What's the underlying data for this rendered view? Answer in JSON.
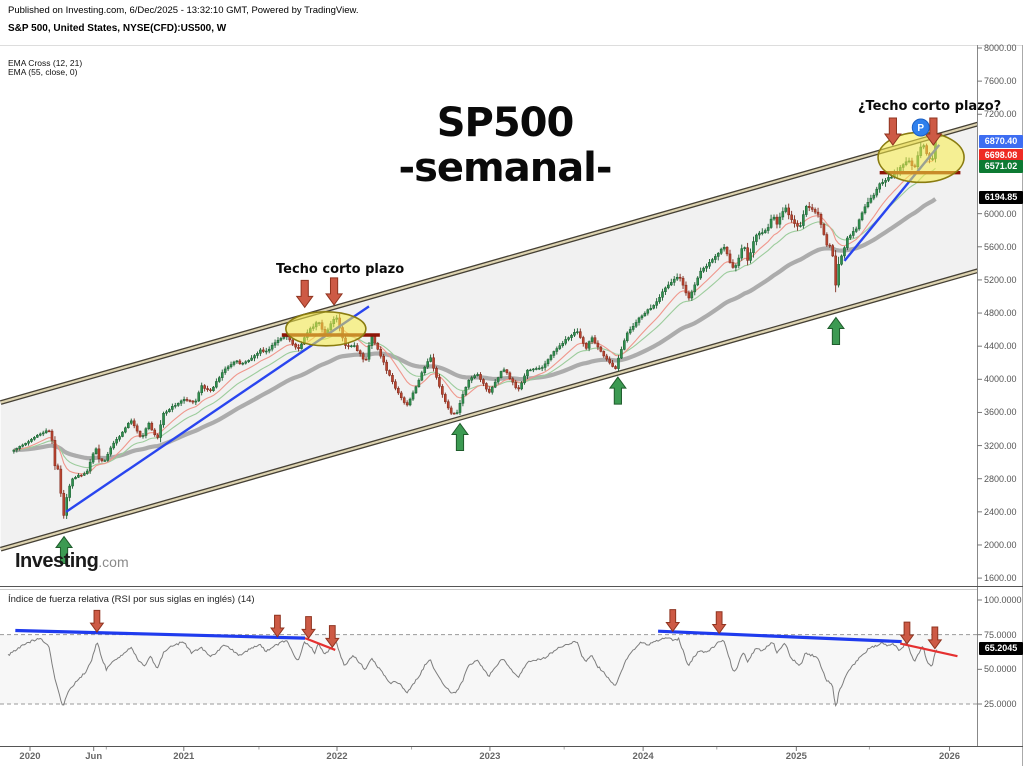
{
  "header": {
    "published_line": "Published on Investing.com, 6/Dec/2025 - 13:32:10 GMT, Powered by TradingView.",
    "symbol_line": "S&P 500, United States, NYSE(CFD):US500, W",
    "indicator_lines": [
      "EMA Cross (12, 21)",
      "EMA (55, close, 0)"
    ]
  },
  "watermark": {
    "bold": "Investing",
    "light": ".com"
  },
  "main_panel": {
    "title_line1": "SP500",
    "title_line2": "-semanal-",
    "annotation_left": "Techo corto plazo",
    "annotation_right": "¿Techo corto plazo?",
    "p_badge_label": "P",
    "price_labels": [
      {
        "value": "6870.40",
        "price": 6870.4,
        "color": "#3d6df2"
      },
      {
        "value": "6698.08",
        "price": 6698.08,
        "color": "#ee2b24"
      },
      {
        "value": "6571.02",
        "price": 6571.02,
        "color": "#0d7a33"
      },
      {
        "value": "6194.85",
        "price": 6194.85,
        "color": "#000000"
      }
    ],
    "y_ticks": [
      8000,
      7600,
      7200,
      6000,
      5600,
      5200,
      4800,
      4400,
      4000,
      3600,
      3200,
      2800,
      2400,
      2000,
      1600
    ]
  },
  "rsi_panel": {
    "label": "Índice de fuerza relativa (RSI por sus siglas en inglés) (14)",
    "value_label": "65.2045",
    "value": 65.2045,
    "y_ticks": [
      100,
      75,
      50,
      25
    ],
    "levels": [
      75,
      25
    ]
  },
  "x_axis": {
    "labels": [
      {
        "text": "2020",
        "w": 0
      },
      {
        "text": "Jun",
        "w": 21.7
      },
      {
        "text": "2021",
        "w": 52.4
      },
      {
        "text": "2022",
        "w": 104.6
      },
      {
        "text": "2023",
        "w": 156.7
      },
      {
        "text": "2024",
        "w": 208.9
      },
      {
        "text": "2025",
        "w": 261.1
      },
      {
        "text": "2026",
        "w": 313.3
      }
    ]
  },
  "chart_data": {
    "type": "candlestick",
    "title": "SP500 -semanal-",
    "symbol": "S&P 500, NYSE(CFD):US500, W",
    "x_unit": "weeks_since_2020_01_01",
    "price_axis_range": [
      1600,
      8000
    ],
    "rsi_axis_range": [
      0,
      100
    ],
    "ema_periods": {
      "fast": 12,
      "slow": 21,
      "long": 55
    },
    "last_values": {
      "close": 6870.4,
      "ema12": 6698.08,
      "ema21": 6571.02,
      "ema55": 6194.85,
      "rsi14": 65.2045
    },
    "weekly_close_anchors": [
      [
        -5.5,
        3145
      ],
      [
        -0.7,
        3240
      ],
      [
        2.3,
        3330
      ],
      [
        6.3,
        3380
      ],
      [
        7.3,
        3337
      ],
      [
        8.3,
        2954
      ],
      [
        9.3,
        2972
      ],
      [
        10.3,
        2711
      ],
      [
        11.3,
        2305
      ],
      [
        12.3,
        2541
      ],
      [
        14.1,
        2790
      ],
      [
        16.3,
        2837
      ],
      [
        19.3,
        2864
      ],
      [
        22.3,
        3194
      ],
      [
        23.3,
        3041
      ],
      [
        25.3,
        3009
      ],
      [
        28.3,
        3225
      ],
      [
        31.3,
        3351
      ],
      [
        34.3,
        3508
      ],
      [
        37.3,
        3319
      ],
      [
        38.3,
        3298
      ],
      [
        40.3,
        3477
      ],
      [
        43.3,
        3270
      ],
      [
        45.3,
        3585
      ],
      [
        47.3,
        3638
      ],
      [
        50.3,
        3709
      ],
      [
        52.3,
        3756
      ],
      [
        56.3,
        3714
      ],
      [
        58.3,
        3935
      ],
      [
        61.3,
        3842
      ],
      [
        66.3,
        4129
      ],
      [
        70.3,
        4233
      ],
      [
        71.3,
        4174
      ],
      [
        75.3,
        4247
      ],
      [
        78.3,
        4352
      ],
      [
        80.3,
        4327
      ],
      [
        83.3,
        4437
      ],
      [
        87.3,
        4535
      ],
      [
        91.3,
        4357
      ],
      [
        95.3,
        4605
      ],
      [
        98.3,
        4698
      ],
      [
        100.3,
        4538
      ],
      [
        104.3,
        4766
      ],
      [
        107.3,
        4398
      ],
      [
        110.3,
        4419
      ],
      [
        114.3,
        4204
      ],
      [
        116.3,
        4543
      ],
      [
        121.3,
        4132
      ],
      [
        124.3,
        3901
      ],
      [
        128.3,
        3675
      ],
      [
        134.3,
        4130
      ],
      [
        136.3,
        4280
      ],
      [
        139.3,
        3924
      ],
      [
        143.3,
        3586
      ],
      [
        145.3,
        3583
      ],
      [
        149.3,
        3993
      ],
      [
        152.3,
        4072
      ],
      [
        156.3,
        3840
      ],
      [
        161.3,
        4136
      ],
      [
        166.3,
        3862
      ],
      [
        169.3,
        4109
      ],
      [
        174.3,
        4136
      ],
      [
        180.3,
        4410
      ],
      [
        186.3,
        4582
      ],
      [
        189.3,
        4370
      ],
      [
        191.3,
        4516
      ],
      [
        195.3,
        4288
      ],
      [
        199.3,
        4117
      ],
      [
        203.3,
        4559
      ],
      [
        208.3,
        4770
      ],
      [
        212.3,
        4891
      ],
      [
        217.3,
        5137
      ],
      [
        221.1,
        5254
      ],
      [
        224.3,
        4967
      ],
      [
        228.3,
        5303
      ],
      [
        232.3,
        5432
      ],
      [
        236.3,
        5615
      ],
      [
        239.3,
        5347
      ],
      [
        240.3,
        5344
      ],
      [
        243.3,
        5648
      ],
      [
        244.3,
        5408
      ],
      [
        247.3,
        5738
      ],
      [
        251.3,
        5808
      ],
      [
        253.3,
        5996
      ],
      [
        254.3,
        5871
      ],
      [
        257.3,
        6090
      ],
      [
        259.3,
        5931
      ],
      [
        262.3,
        5827
      ],
      [
        264.3,
        6101
      ],
      [
        268.3,
        6013
      ],
      [
        271.3,
        5639
      ],
      [
        273.3,
        5581
      ],
      [
        274.3,
        5074
      ],
      [
        275.3,
        5363
      ],
      [
        278.3,
        5687
      ],
      [
        281.3,
        5803
      ],
      [
        283.3,
        6000
      ],
      [
        286.3,
        6173
      ],
      [
        290.3,
        6389
      ],
      [
        293.3,
        6450
      ],
      [
        294.3,
        6467
      ],
      [
        297.3,
        6584
      ],
      [
        299.3,
        6644
      ],
      [
        301.3,
        6552
      ],
      [
        303.3,
        6792
      ],
      [
        304.3,
        6840
      ],
      [
        305.3,
        6729
      ],
      [
        307.3,
        6603
      ],
      [
        308.3,
        6849
      ],
      [
        309.3,
        6870.4
      ]
    ],
    "channel": {
      "lower": [
        [
          11.9,
          2170
        ],
        [
          322,
          5302
        ]
      ],
      "upper": [
        [
          11.9,
          3940
        ],
        [
          322,
          7073
        ]
      ]
    },
    "trendlines_blue": [
      {
        "w1": 12.3,
        "p1": 2400,
        "w2": 115.5,
        "p2": 4880
      },
      {
        "w1": 277.5,
        "p1": 5430,
        "w2": 309.8,
        "p2": 6830
      }
    ],
    "resistance_lines_red": [
      {
        "w1": 85.8,
        "w2": 119.2,
        "price": 4535
      },
      {
        "w1": 289.5,
        "w2": 317.0,
        "price": 6495
      }
    ],
    "ellipses": [
      {
        "w": 100.8,
        "price": 4610,
        "rx": 40,
        "ry": 17
      },
      {
        "w": 303.6,
        "price": 6680,
        "rx": 43,
        "ry": 25
      }
    ],
    "arrows_down": [
      [
        93.6,
        4820
      ],
      [
        103.6,
        4850
      ],
      [
        294.0,
        6780
      ],
      [
        307.8,
        6780
      ]
    ],
    "arrows_up": [
      [
        11.6,
        2150
      ],
      [
        146.5,
        3515
      ],
      [
        200.3,
        4075
      ],
      [
        274.6,
        4795
      ]
    ],
    "p_marker": {
      "w": 303.5,
      "price": 7040
    },
    "rsi": {
      "period": 14,
      "anchors": [
        [
          -7.5,
          60
        ],
        [
          -2,
          68
        ],
        [
          3.5,
          73
        ],
        [
          6.5,
          66
        ],
        [
          8.3,
          45
        ],
        [
          10.5,
          28
        ],
        [
          11.3,
          23
        ],
        [
          13,
          34
        ],
        [
          16,
          42
        ],
        [
          19,
          48
        ],
        [
          21,
          56
        ],
        [
          22.8,
          71
        ],
        [
          24.5,
          58
        ],
        [
          26,
          50
        ],
        [
          28,
          55
        ],
        [
          31,
          60
        ],
        [
          34.3,
          66
        ],
        [
          37,
          56
        ],
        [
          39,
          52
        ],
        [
          41,
          60
        ],
        [
          43.3,
          50
        ],
        [
          45.5,
          62
        ],
        [
          47.5,
          66
        ],
        [
          50,
          68
        ],
        [
          52.3,
          70
        ],
        [
          55,
          62
        ],
        [
          58.3,
          66
        ],
        [
          61.3,
          59
        ],
        [
          64,
          63
        ],
        [
          66.3,
          68
        ],
        [
          69,
          64
        ],
        [
          71.3,
          60
        ],
        [
          73.5,
          63
        ],
        [
          75.3,
          65
        ],
        [
          78.3,
          68
        ],
        [
          80.3,
          63
        ],
        [
          83.3,
          67
        ],
        [
          87.3,
          71
        ],
        [
          89.5,
          62
        ],
        [
          91.3,
          56
        ],
        [
          93.5,
          70
        ],
        [
          95.3,
          67
        ],
        [
          97,
          62
        ],
        [
          98.3,
          69
        ],
        [
          100.3,
          60
        ],
        [
          102.3,
          65
        ],
        [
          104.3,
          70
        ],
        [
          106,
          59
        ],
        [
          107.3,
          52
        ],
        [
          109,
          57
        ],
        [
          110.3,
          60
        ],
        [
          112.5,
          54
        ],
        [
          114.3,
          50
        ],
        [
          116.3,
          58
        ],
        [
          118.5,
          52
        ],
        [
          121.3,
          44
        ],
        [
          123,
          40
        ],
        [
          124.3,
          42
        ],
        [
          126.5,
          38
        ],
        [
          128.3,
          33
        ],
        [
          130.5,
          39
        ],
        [
          132.5,
          45
        ],
        [
          134.3,
          52
        ],
        [
          136.3,
          58
        ],
        [
          138,
          49
        ],
        [
          139.3,
          44
        ],
        [
          141.5,
          38
        ],
        [
          143.3,
          33
        ],
        [
          145.3,
          34
        ],
        [
          147.5,
          42
        ],
        [
          149.3,
          52
        ],
        [
          151,
          55
        ],
        [
          152.3,
          57
        ],
        [
          154.5,
          50
        ],
        [
          156.3,
          45
        ],
        [
          158.5,
          52
        ],
        [
          161.3,
          58
        ],
        [
          163.5,
          51
        ],
        [
          166.3,
          44
        ],
        [
          168,
          50
        ],
        [
          169.3,
          55
        ],
        [
          171.5,
          57
        ],
        [
          174.3,
          57
        ],
        [
          176.5,
          60
        ],
        [
          178.5,
          63
        ],
        [
          180.3,
          66
        ],
        [
          183,
          68
        ],
        [
          186.3,
          70
        ],
        [
          188,
          60
        ],
        [
          189.3,
          55
        ],
        [
          191.3,
          60
        ],
        [
          193.5,
          52
        ],
        [
          195.3,
          48
        ],
        [
          197.5,
          43
        ],
        [
          199.3,
          38
        ],
        [
          201.5,
          48
        ],
        [
          203.3,
          58
        ],
        [
          205.5,
          64
        ],
        [
          208.3,
          70
        ],
        [
          210.5,
          67
        ],
        [
          212.3,
          70
        ],
        [
          214.5,
          71
        ],
        [
          217.3,
          73
        ],
        [
          219.1,
          71
        ],
        [
          221.1,
          72
        ],
        [
          223,
          60
        ],
        [
          224.3,
          52
        ],
        [
          226.5,
          60
        ],
        [
          228.3,
          64
        ],
        [
          230.5,
          62
        ],
        [
          232.3,
          65
        ],
        [
          234.8,
          70
        ],
        [
          236.3,
          71
        ],
        [
          238,
          60
        ],
        [
          239.3,
          50
        ],
        [
          240.3,
          48
        ],
        [
          242,
          58
        ],
        [
          243.3,
          62
        ],
        [
          244.3,
          55
        ],
        [
          245.8,
          60
        ],
        [
          247.3,
          65
        ],
        [
          249.5,
          63
        ],
        [
          251.3,
          67
        ],
        [
          253.3,
          70
        ],
        [
          254.3,
          62
        ],
        [
          256,
          66
        ],
        [
          257.3,
          69
        ],
        [
          259.3,
          58
        ],
        [
          261,
          55
        ],
        [
          262.3,
          52
        ],
        [
          264.3,
          62
        ],
        [
          266.5,
          60
        ],
        [
          268.3,
          58
        ],
        [
          270,
          50
        ],
        [
          271.3,
          42
        ],
        [
          273.3,
          40
        ],
        [
          274.3,
          25
        ],
        [
          274.8,
          22
        ],
        [
          275.3,
          32
        ],
        [
          277,
          40
        ],
        [
          278.3,
          47
        ],
        [
          280,
          52
        ],
        [
          281.3,
          55
        ],
        [
          283.3,
          60
        ],
        [
          285,
          63
        ],
        [
          286.3,
          66
        ],
        [
          288.5,
          67
        ],
        [
          290.3,
          69
        ],
        [
          292,
          67
        ],
        [
          293.3,
          68
        ],
        [
          294.3,
          68
        ],
        [
          296,
          64
        ],
        [
          297.3,
          66
        ],
        [
          298.8,
          70
        ],
        [
          300,
          62
        ],
        [
          301.3,
          55
        ],
        [
          302.5,
          60
        ],
        [
          303.3,
          64
        ],
        [
          304.3,
          67
        ],
        [
          305.3,
          58
        ],
        [
          306.5,
          53
        ],
        [
          307.3,
          52
        ],
        [
          308.3,
          62
        ],
        [
          309.3,
          65.2
        ]
      ],
      "levels": [
        75,
        25
      ],
      "trendlines_blue": [
        {
          "w1": -5.0,
          "v1": 78.0,
          "w2": 93.7,
          "v2": 72.5
        },
        {
          "w1": 214.0,
          "v1": 77.5,
          "w2": 297.0,
          "v2": 70.0
        }
      ],
      "trendlines_red": [
        {
          "w1": 93.7,
          "v1": 72.5,
          "w2": 104.0,
          "v2": 64.0
        },
        {
          "w1": 296.5,
          "v1": 68.6,
          "w2": 316.0,
          "v2": 59.5
        }
      ],
      "arrows_down": [
        [
          22.8,
          75.5
        ],
        [
          84.3,
          72.0
        ],
        [
          94.9,
          71.0
        ],
        [
          103.0,
          64.5
        ],
        [
          219.0,
          76.0
        ],
        [
          234.8,
          74.5
        ],
        [
          298.8,
          67.0
        ],
        [
          308.3,
          63.5
        ]
      ]
    }
  }
}
